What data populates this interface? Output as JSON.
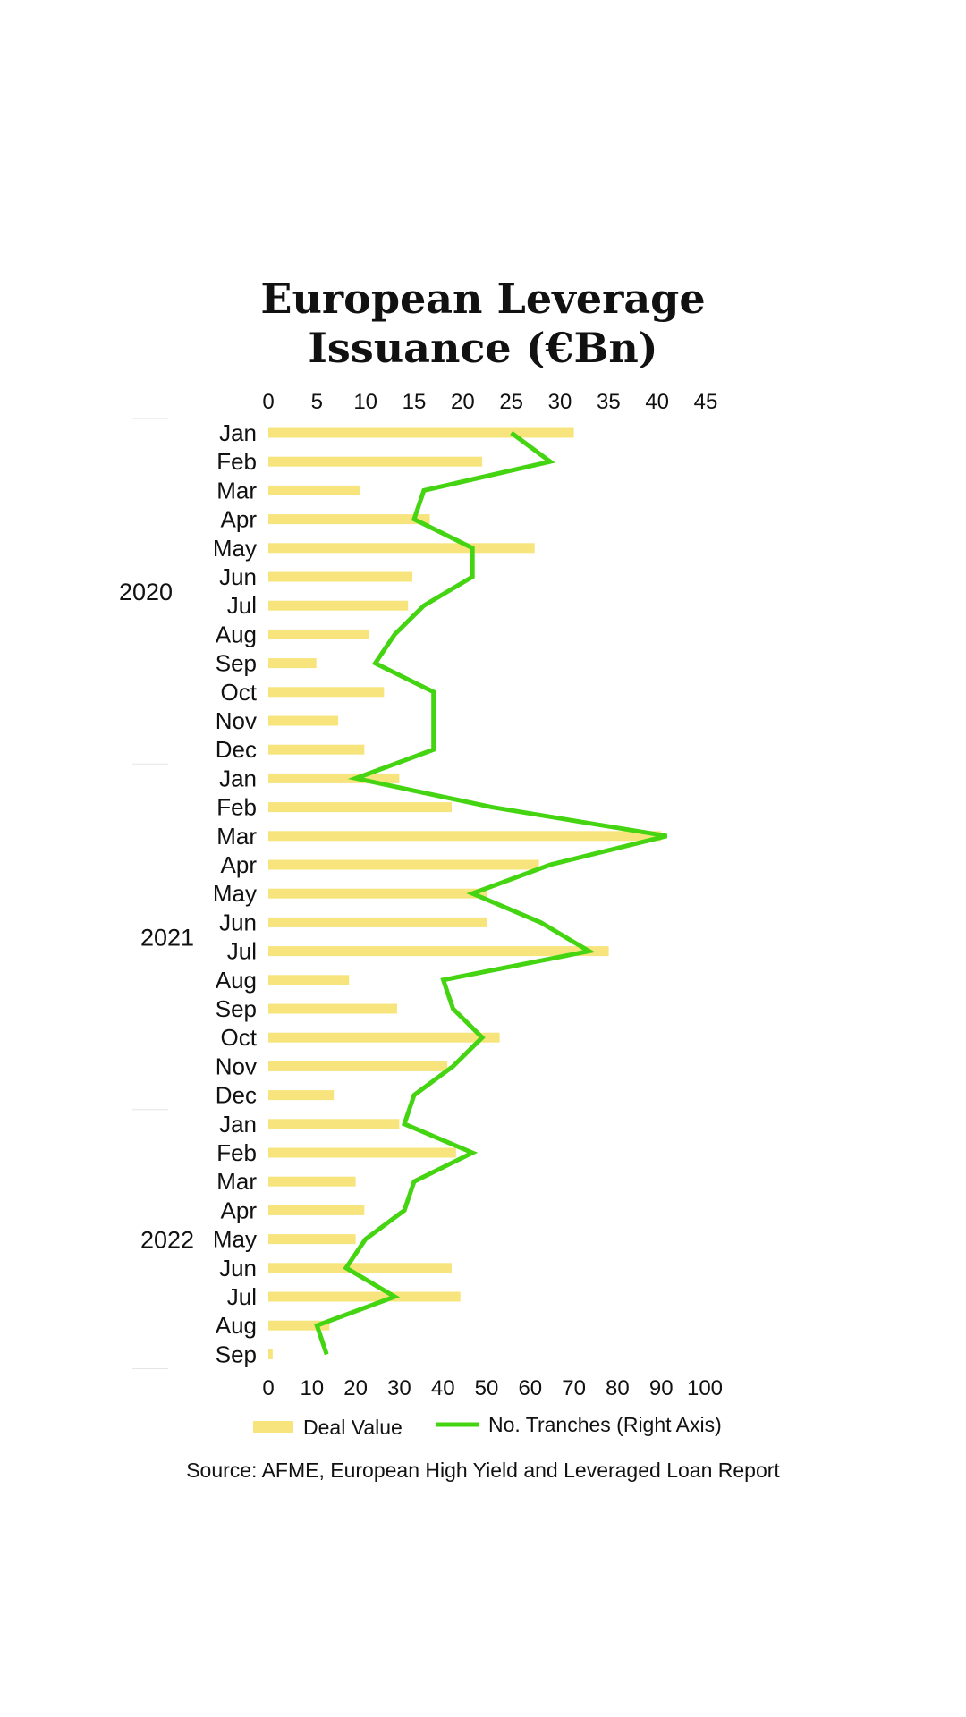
{
  "chart_data": {
    "type": "bar",
    "orientation": "horizontal",
    "title_lines": [
      "European Leverage",
      "Issuance (€Bn)"
    ],
    "top_axis": {
      "label": "",
      "range": [
        0,
        45
      ],
      "ticks": [
        "0",
        "5",
        "10",
        "15",
        "20",
        "25",
        "30",
        "35",
        "40",
        "45"
      ]
    },
    "bottom_axis": {
      "label": "",
      "range": [
        0,
        100
      ],
      "ticks": [
        "0",
        "10",
        "20",
        "30",
        "40",
        "50",
        "60",
        "70",
        "80",
        "90",
        "100"
      ]
    },
    "groups": [
      {
        "label": "2020",
        "months": [
          "Jan",
          "Feb",
          "Mar",
          "Apr",
          "May",
          "Jun",
          "Jul",
          "Aug",
          "Sep",
          "Oct",
          "Nov",
          "Dec"
        ]
      },
      {
        "label": "2021",
        "months": [
          "Jan",
          "Feb",
          "Mar",
          "Apr",
          "May",
          "Jun",
          "Jul",
          "Aug",
          "Sep",
          "Oct",
          "Nov",
          "Dec"
        ]
      },
      {
        "label": "2022",
        "months": [
          "Jan",
          "Feb",
          "Mar",
          "Apr",
          "May",
          "Jun",
          "Jul",
          "Aug",
          "Sep"
        ]
      }
    ],
    "series": [
      {
        "name": "Deal Value",
        "kind": "bar",
        "axis": "bottom",
        "color": "#F7E47C",
        "values": [
          70,
          49,
          21,
          37,
          61,
          33,
          32,
          23,
          11,
          26.5,
          16,
          22,
          30,
          42,
          90,
          62,
          50,
          50,
          78,
          18.5,
          29.5,
          53,
          41,
          15,
          30,
          43,
          20,
          22,
          20,
          42,
          44,
          14,
          1
        ]
      },
      {
        "name": "No. Tranches (Right Axis)",
        "kind": "line",
        "axis": "top",
        "color": "#44D411",
        "values": [
          25,
          29,
          16,
          15,
          21,
          21,
          16,
          13,
          11,
          17,
          17,
          17,
          9,
          23,
          41,
          29,
          21,
          28,
          33,
          18,
          19,
          22,
          19,
          15,
          14,
          21,
          15,
          14,
          10,
          8,
          13,
          5,
          6
        ]
      }
    ],
    "legend": {
      "placement": "bottom",
      "items": [
        "Deal Value",
        "No. Tranches (Right Axis)"
      ]
    },
    "source": "Source:  AFME, European High Yield and Leveraged Loan Report",
    "grid": false
  }
}
